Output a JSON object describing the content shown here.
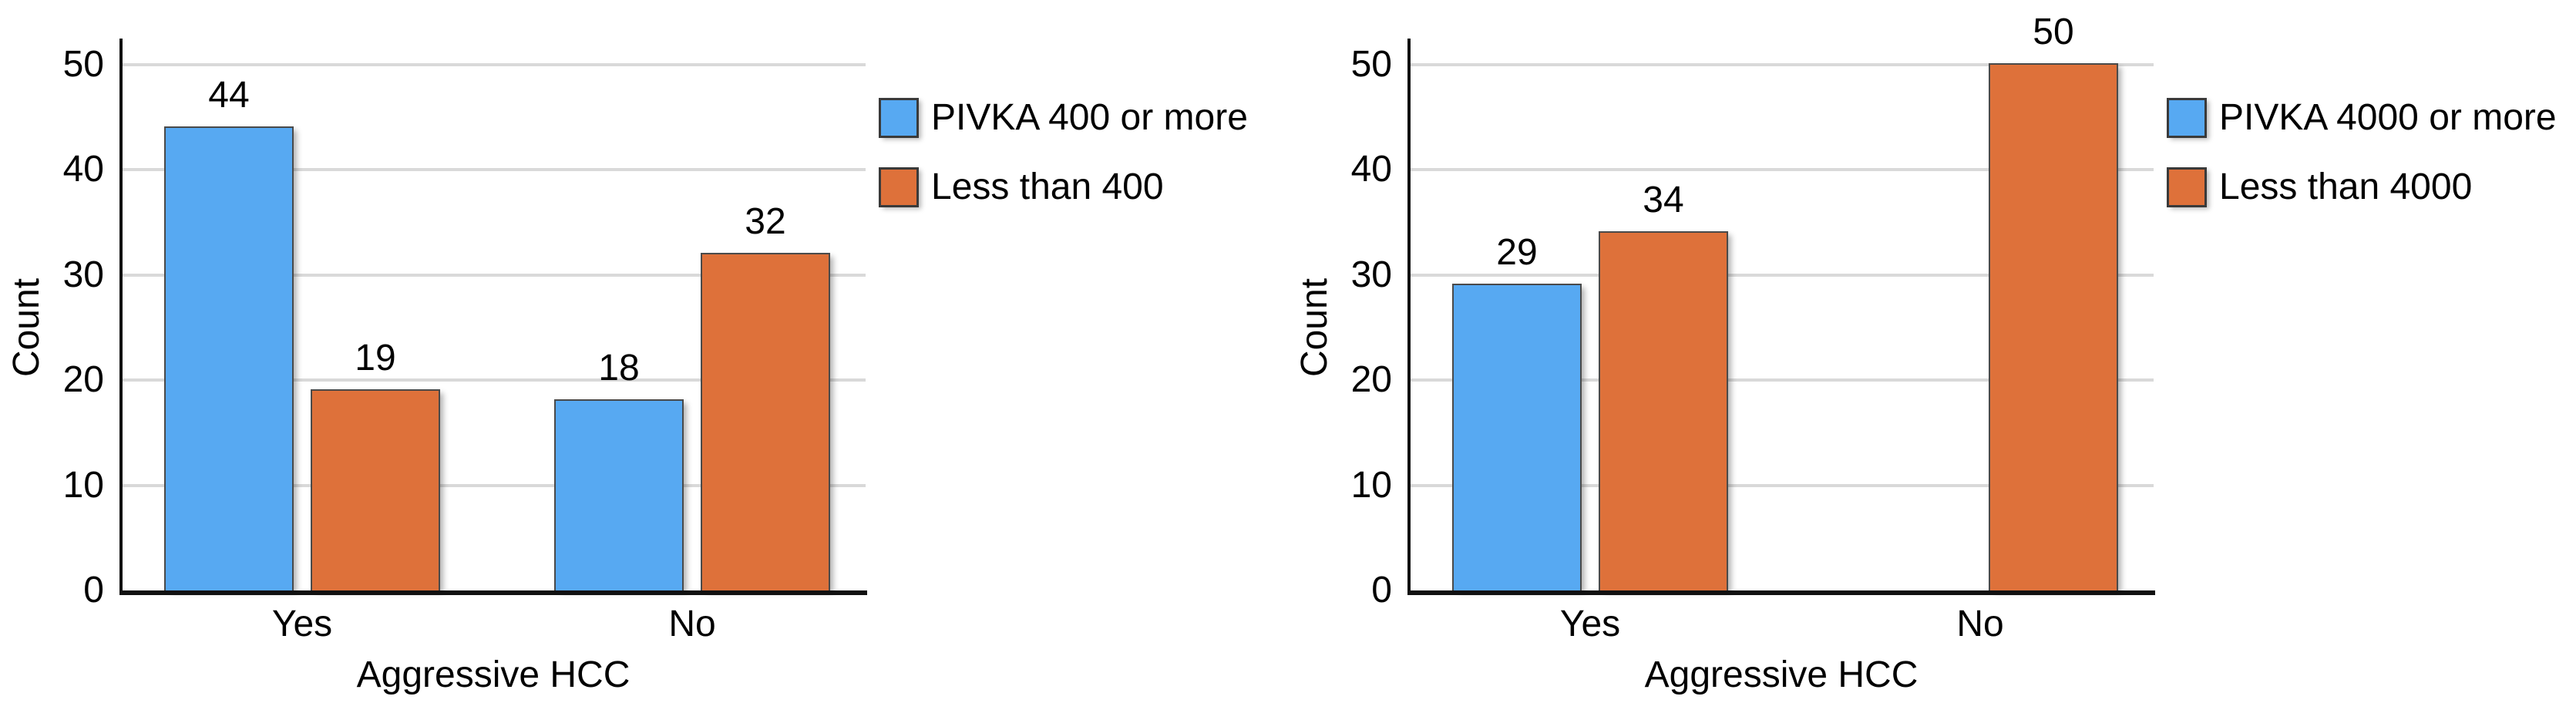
{
  "page": {
    "background": "#ffffff"
  },
  "style": {
    "blue": "#57a9f2",
    "orange": "#de713a",
    "bar_border": "#4a4a4a",
    "gridline_color": "#d9d9d9",
    "axis_color": "#111111",
    "text_color": "#000000"
  },
  "chart_data": [
    {
      "type": "bar",
      "title": "",
      "xlabel": "Aggressive HCC",
      "ylabel": "Count",
      "categories": [
        "Yes",
        "No"
      ],
      "series": [
        {
          "name": "PIVKA 400 or more",
          "color": "#57a9f2",
          "values": [
            44,
            18
          ]
        },
        {
          "name": "Less than 400",
          "color": "#de713a",
          "values": [
            19,
            32
          ]
        }
      ],
      "bar_value_labels": [
        [
          "44",
          "18"
        ],
        [
          "19",
          "32"
        ]
      ],
      "yticks": [
        "0",
        "10",
        "20",
        "30",
        "40",
        "50"
      ],
      "ytick_values": [
        0,
        10,
        20,
        30,
        40,
        50
      ],
      "ylim": [
        0,
        50
      ],
      "grid": true,
      "legend_position": "right"
    },
    {
      "type": "bar",
      "title": "",
      "xlabel": "Aggressive HCC",
      "ylabel": "Count",
      "categories": [
        "Yes",
        "No"
      ],
      "series": [
        {
          "name": "PIVKA 4000 or more",
          "color": "#57a9f2",
          "values": [
            29,
            null
          ]
        },
        {
          "name": "Less than 4000",
          "color": "#de713a",
          "values": [
            34,
            50
          ]
        }
      ],
      "bar_value_labels": [
        [
          "29",
          null
        ],
        [
          "34",
          "50"
        ]
      ],
      "yticks": [
        "0",
        "10",
        "20",
        "30",
        "40",
        "50"
      ],
      "ytick_values": [
        0,
        10,
        20,
        30,
        40,
        50
      ],
      "ylim": [
        0,
        50
      ],
      "grid": true,
      "legend_position": "right"
    }
  ]
}
